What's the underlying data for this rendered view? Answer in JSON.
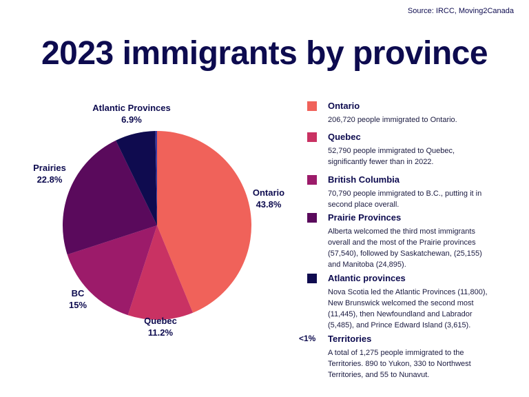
{
  "source": "Source: IRCC, Moving2Canada",
  "chart_data": {
    "type": "pie",
    "title": "2023 immigrants by province",
    "categories": [
      "Ontario",
      "Quebec",
      "BC",
      "Prairies",
      "Atlantic Provinces",
      null
    ],
    "values": [
      43.8,
      11.2,
      15,
      22.8,
      6.9,
      0.3
    ],
    "value_labels": [
      "43.8%",
      "11.2%",
      "15%",
      "22.8%",
      "6.9%",
      "<1%"
    ],
    "colors": [
      "#f0625a",
      "#c93263",
      "#9c1b6a",
      "#5a0a5c",
      "#0f0b4f",
      "#3a3aa0"
    ],
    "legend_items": [
      {
        "title": "Ontario",
        "description": "206,720 people immigrated to Ontario."
      },
      {
        "title": "Quebec",
        "description": "52,790 people immigrated to Quebec, significantly fewer than in 2022."
      },
      {
        "title": "British Columbia",
        "description": "70,790 people immigrated to B.C., putting it in second place overall."
      },
      {
        "title": "Prairie Provinces",
        "description": "Alberta welcomed the third most immigrants overall and the most of the Prairie provinces (57,540), followed by Saskatchewan, (25,155) and Manitoba (24,895)."
      },
      {
        "title": "Atlantic provinces",
        "description": "Nova Scotia led the Atlantic Provinces (11,800), New Brunswick welcomed the second most (11,445), then Newfoundland and Labrador (5,485), and  Prince Edward Island (3,615)."
      },
      {
        "title": "Territories",
        "description": "A total of 1,275 people immigrated to the Territories. 890 to Yukon, 330 to Northwest Territories, and 55 to Nunavut."
      }
    ]
  }
}
